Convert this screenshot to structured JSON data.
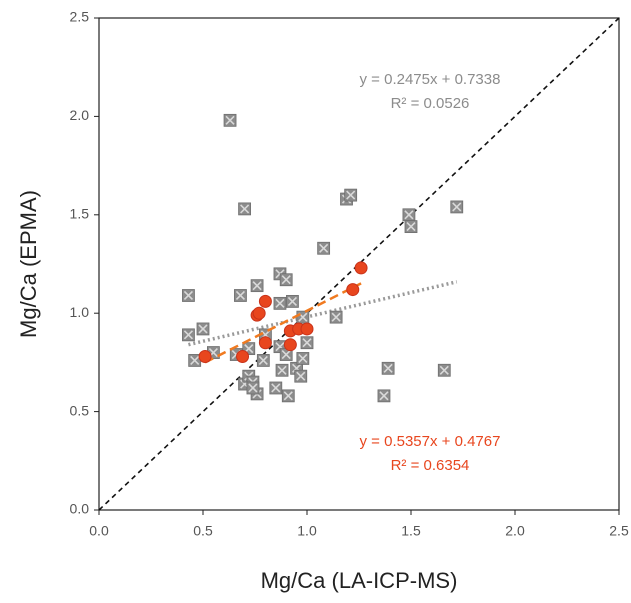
{
  "chart_data": {
    "type": "scatter",
    "x_label": "Mg/Ca (LA-ICP-MS)",
    "y_label": "Mg/Ca (EPMA)",
    "xlim": [
      0,
      2.5
    ],
    "ylim": [
      0,
      2.5
    ],
    "xticks": [
      {
        "value": 0,
        "label": "0.0"
      },
      0.5,
      {
        "value": 1,
        "label": "1.0"
      },
      1.5,
      {
        "value": 2,
        "label": "2.0"
      },
      2.5
    ],
    "yticks": [
      {
        "value": 0,
        "label": "0.0"
      },
      0.5,
      {
        "value": 1,
        "label": "1.0"
      },
      1.5,
      {
        "value": 2,
        "label": "2.0"
      },
      2.5
    ],
    "identity_line": true,
    "series": [
      {
        "color": "#8c8c8c",
        "marker": "square",
        "x": [
          0.43,
          0.43,
          0.5,
          0.46,
          0.55,
          0.63,
          0.7,
          0.68,
          0.76,
          0.66,
          0.7,
          0.72,
          0.74,
          0.76,
          0.74,
          0.79,
          0.8,
          0.87,
          0.9,
          0.93,
          0.87,
          0.87,
          0.88,
          0.85,
          0.91,
          0.9,
          0.95,
          0.97,
          0.98,
          0.98,
          1.0,
          1.08,
          1.14,
          1.19,
          1.21,
          1.49,
          1.5,
          1.72,
          1.39,
          1.37,
          1.66,
          0.72
        ],
        "values": [
          1.09,
          0.89,
          0.92,
          0.76,
          0.8,
          1.98,
          1.53,
          1.09,
          1.14,
          0.79,
          0.64,
          0.68,
          0.65,
          0.59,
          0.62,
          0.76,
          0.89,
          1.2,
          1.17,
          1.06,
          1.05,
          0.83,
          0.71,
          0.62,
          0.58,
          0.79,
          0.72,
          0.68,
          0.77,
          0.98,
          0.85,
          1.33,
          0.98,
          1.58,
          1.6,
          1.5,
          1.44,
          1.54,
          0.72,
          0.58,
          0.71,
          0.82
        ],
        "trendline": {
          "equation": "y = 0.2475x + 0.7338",
          "r_squared": "R² = 0.0526",
          "style": "dotted"
        }
      },
      {
        "color": "#e8461e",
        "marker": "circle",
        "x": [
          0.51,
          0.69,
          0.76,
          0.77,
          0.8,
          0.8,
          0.92,
          0.92,
          0.96,
          1.0,
          1.26,
          1.22
        ],
        "values": [
          0.78,
          0.78,
          0.99,
          1.0,
          1.06,
          0.85,
          0.91,
          0.84,
          0.92,
          0.92,
          1.23,
          1.12
        ],
        "trendline": {
          "equation": "y = 0.5357x + 0.4767",
          "r_squared": "R² = 0.6354",
          "style": "dashed"
        }
      }
    ]
  }
}
